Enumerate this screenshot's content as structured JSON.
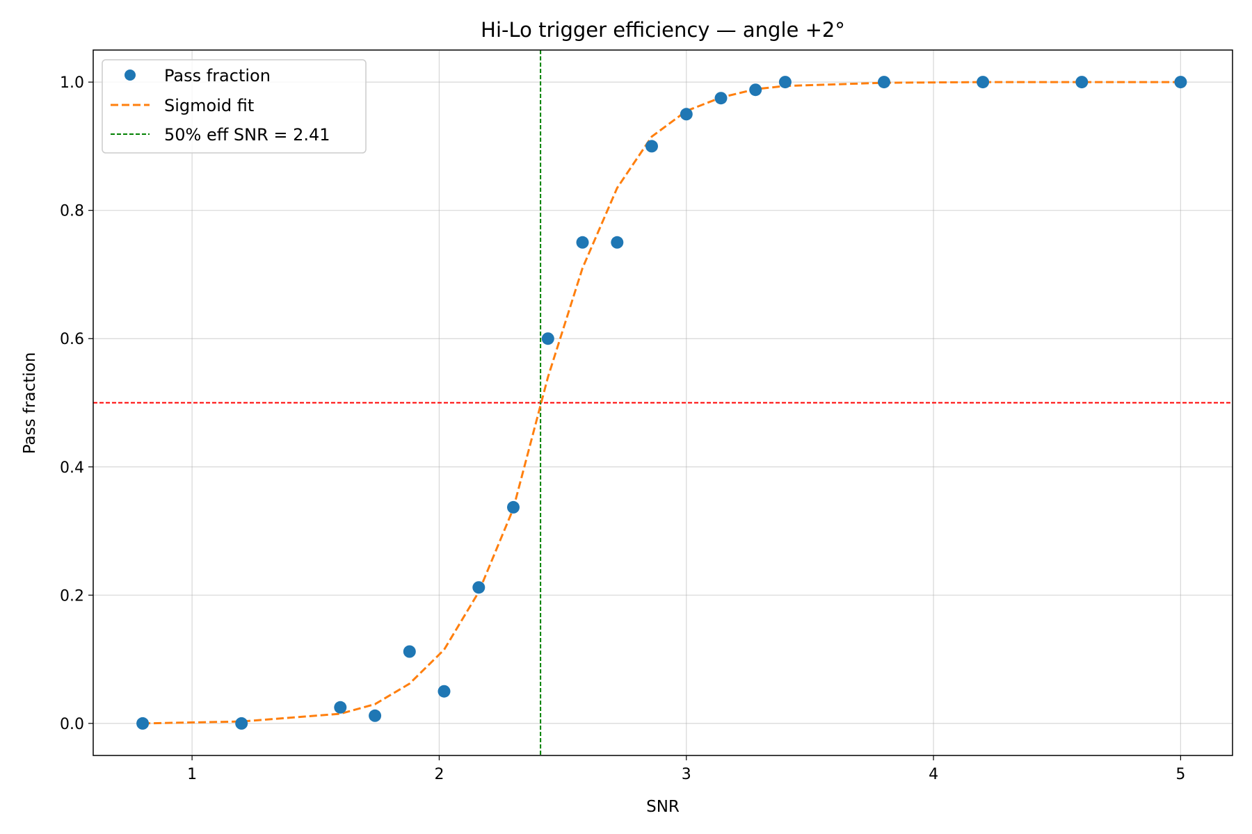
{
  "chart_data": {
    "type": "scatter",
    "title": "Hi-Lo trigger efficiency — angle +2°",
    "xlabel": "SNR",
    "ylabel": "Pass fraction",
    "xlim": [
      0.6,
      5.21
    ],
    "ylim": [
      -0.05,
      1.05
    ],
    "xticks": [
      1,
      2,
      3,
      4,
      5
    ],
    "xtick_labels": [
      "1",
      "2",
      "3",
      "4",
      "5"
    ],
    "yticks": [
      0.0,
      0.2,
      0.4,
      0.6,
      0.8,
      1.0
    ],
    "ytick_labels": [
      "0.0",
      "0.2",
      "0.4",
      "0.6",
      "0.8",
      "1.0"
    ],
    "grid": true,
    "legend_position": "top-left",
    "series": [
      {
        "name": "Pass fraction",
        "kind": "markers",
        "color": "#1f77b4",
        "x": [
          0.8,
          1.2,
          1.6,
          1.74,
          1.88,
          2.02,
          2.16,
          2.3,
          2.44,
          2.58,
          2.72,
          2.86,
          3.0,
          3.14,
          3.28,
          3.4,
          3.8,
          4.2,
          4.6,
          5.0
        ],
        "y": [
          0.0,
          0.0,
          0.025,
          0.012,
          0.112,
          0.05,
          0.212,
          0.337,
          0.6,
          0.75,
          0.75,
          0.9,
          0.95,
          0.975,
          0.988,
          1.0,
          1.0,
          1.0,
          1.0,
          1.0
        ]
      },
      {
        "name": "Sigmoid fit",
        "kind": "dashed-line",
        "color": "#ff7f0e",
        "x": [
          0.8,
          1.2,
          1.6,
          1.74,
          1.88,
          2.02,
          2.16,
          2.3,
          2.44,
          2.58,
          2.72,
          2.86,
          3.0,
          3.14,
          3.28,
          3.4,
          3.8,
          4.2,
          4.6,
          5.0
        ],
        "y": [
          0.0,
          0.003,
          0.015,
          0.03,
          0.062,
          0.115,
          0.205,
          0.335,
          0.54,
          0.71,
          0.835,
          0.915,
          0.955,
          0.976,
          0.989,
          0.994,
          0.999,
          1.0,
          1.0,
          1.0
        ]
      },
      {
        "name": "50% eff SNR = 2.41",
        "kind": "vertical-line",
        "color": "#008000",
        "x": 2.41
      }
    ],
    "reference_lines": [
      {
        "kind": "horizontal-line",
        "y": 0.5,
        "color": "#ff0000"
      }
    ]
  }
}
